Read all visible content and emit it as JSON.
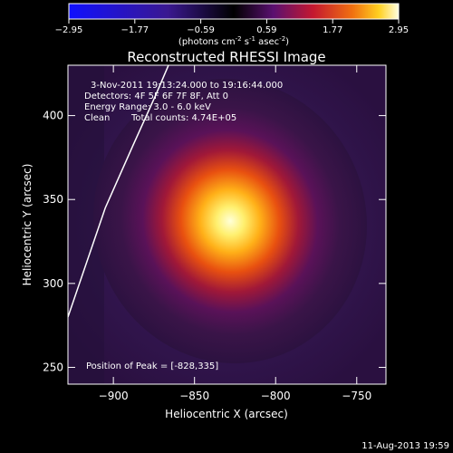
{
  "chart_data": {
    "type": "heatmap",
    "title": "Reconstructed RHESSI Image",
    "xlabel": "Heliocentric X (arcsec)",
    "ylabel": "Heliocentric Y (arcsec)",
    "xlim": [
      -928,
      -732
    ],
    "ylim": [
      240,
      430
    ],
    "xticks": [
      -900,
      -850,
      -800,
      -750
    ],
    "yticks": [
      250,
      300,
      350,
      400
    ],
    "colorbar": {
      "min": -2.95,
      "max": 2.95,
      "ticks": [
        "-2.95",
        "-1.77",
        "-0.59",
        "0.59",
        "1.77",
        "2.95"
      ],
      "units_prefix": "(photons cm",
      "units_exp1": "-2",
      "units_mid": " s",
      "units_exp2": "-1",
      "units_mid2": " asec",
      "units_exp3": "-2",
      "units_suffix": ")"
    },
    "annotations": {
      "time_range": "3-Nov-2011 19:13:24.000 to 19:16:44.000",
      "detectors": "Detectors: 4F 5F 6F 7F 8F, Att 0",
      "energy": "Energy Range: 3.0 - 6.0 keV",
      "method": "Clean",
      "counts": "Total counts: 4.74E+05",
      "peak": "Position of Peak = [-828,335]"
    },
    "peak": {
      "x": -828,
      "y": 335
    },
    "limb_line": [
      [
        -928,
        280
      ],
      [
        -905,
        345
      ],
      [
        -888,
        382
      ],
      [
        -874,
        412
      ],
      [
        -866,
        430
      ]
    ]
  },
  "footer": {
    "date": "11-Aug-2013 19:59"
  }
}
